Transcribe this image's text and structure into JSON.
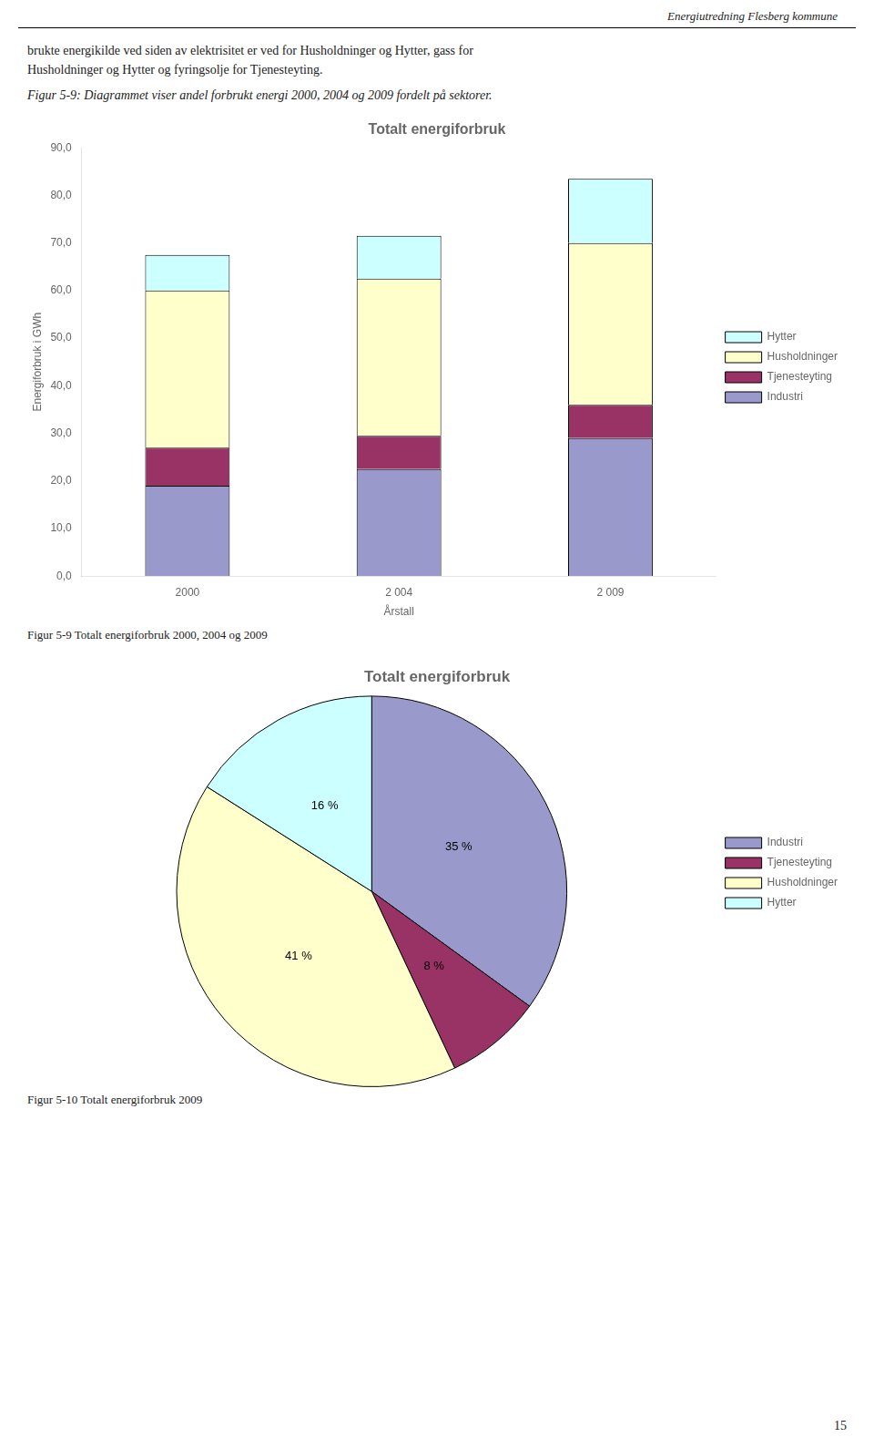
{
  "header": "Energiutredning Flesberg kommune",
  "text": [
    "brukte energikilde ved siden av elektrisitet er ved for Husholdninger og Hytter, gass for",
    "Husholdninger og Hytter og fyringsolje for Tjenesteyting."
  ],
  "figure_note": "Figur 5-9: Diagrammet viser andel forbrukt energi 2000, 2004 og 2009 fordelt på sektorer.",
  "page_number": "15",
  "chart_data": [
    {
      "type": "bar",
      "title": "Totalt energiforbruk",
      "caption": "Figur 5-9 Totalt energiforbruk 2000, 2004 og 2009",
      "xlabel": "Årstall",
      "ylabel": "Energiforbruk i GWh",
      "categories": [
        "2000",
        "2 004",
        "2 009"
      ],
      "series": [
        {
          "name": "Industri",
          "color": "#9999cc",
          "values": [
            19.0,
            22.5,
            29.0
          ]
        },
        {
          "name": "Tjenesteyting",
          "color": "#993366",
          "values": [
            8.0,
            7.0,
            7.0
          ]
        },
        {
          "name": "Husholdninger",
          "color": "#ffffcc",
          "values": [
            33.0,
            33.0,
            34.0
          ]
        },
        {
          "name": "Hytter",
          "color": "#ccffff",
          "values": [
            7.5,
            9.0,
            13.5
          ]
        }
      ],
      "stacked": true,
      "ylim": [
        0,
        90
      ],
      "yticks": [
        {
          "value": 0,
          "label": "0,0"
        },
        {
          "value": 10,
          "label": "10,0"
        },
        {
          "value": 20,
          "label": "20,0"
        },
        {
          "value": 30,
          "label": "30,0"
        },
        {
          "value": 40,
          "label": "40,0"
        },
        {
          "value": 50,
          "label": "50,0"
        },
        {
          "value": 60,
          "label": "60,0"
        },
        {
          "value": 70,
          "label": "70,0"
        },
        {
          "value": 80,
          "label": "80,0"
        },
        {
          "value": 90,
          "label": "90,0"
        }
      ],
      "grid": false,
      "legend": "right"
    },
    {
      "type": "pie",
      "title": "Totalt energiforbruk",
      "caption": "Figur 5-10 Totalt energiforbruk 2009",
      "categories": [
        "Industri",
        "Tjenesteyting",
        "Husholdninger",
        "Hytter"
      ],
      "values": [
        35,
        8,
        41,
        16
      ],
      "value_labels": [
        "35 %",
        "8 %",
        "41 %",
        "16 %"
      ],
      "colors": [
        "#9999cc",
        "#993366",
        "#ffffcc",
        "#ccffff"
      ],
      "data_labels": true,
      "legend": "right"
    }
  ]
}
